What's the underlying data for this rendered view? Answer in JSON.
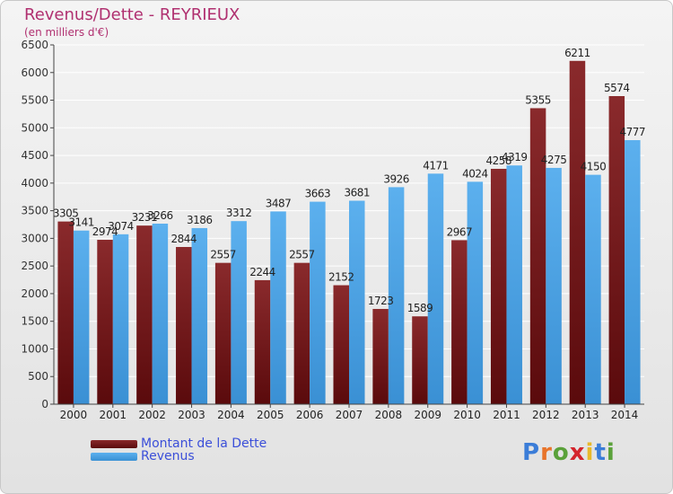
{
  "title": "Revenus/Dette - REYRIEUX",
  "subtitle": "(en milliers d'€)",
  "logo_text": "Proxiti",
  "colors": {
    "debt": "#7a1f22",
    "revenue": "#4aa3e6",
    "title": "#b03070",
    "legend_text": "#3b4fd9"
  },
  "chart_data": {
    "type": "bar",
    "categories": [
      "2000",
      "2001",
      "2002",
      "2003",
      "2004",
      "2005",
      "2006",
      "2007",
      "2008",
      "2009",
      "2010",
      "2011",
      "2012",
      "2013",
      "2014"
    ],
    "series": [
      {
        "name": "Montant de la Dette",
        "values": [
          3305,
          2974,
          3231,
          2844,
          2557,
          2244,
          2557,
          2152,
          1723,
          1589,
          2967,
          4258,
          5355,
          6211,
          5574
        ],
        "labels": [
          "3305",
          "2974",
          "3231",
          "2844",
          "2557",
          "2244",
          "2557",
          "2152",
          "1723",
          "1589",
          "2967",
          "4258",
          "5355",
          "6211",
          "5574"
        ]
      },
      {
        "name": "Revenus",
        "values": [
          3141,
          3074,
          3266,
          3186,
          3312,
          3487,
          3663,
          3681,
          3926,
          4171,
          4024,
          4319,
          4275,
          4150,
          4777
        ],
        "labels": [
          "3141",
          "3074",
          "3266",
          "3186",
          "3312",
          "3487",
          "3663",
          "3681",
          "3926",
          "4171",
          "4024",
          "4319",
          "4275",
          "4150",
          "4777"
        ]
      }
    ],
    "ylim": [
      0,
      6500
    ],
    "yticks": [
      "0",
      "500",
      "1000",
      "1500",
      "2000",
      "2500",
      "3000",
      "3500",
      "4000",
      "4500",
      "5000",
      "5500",
      "6000",
      "6500"
    ],
    "grid": true,
    "legend_position": "bottom-left"
  }
}
